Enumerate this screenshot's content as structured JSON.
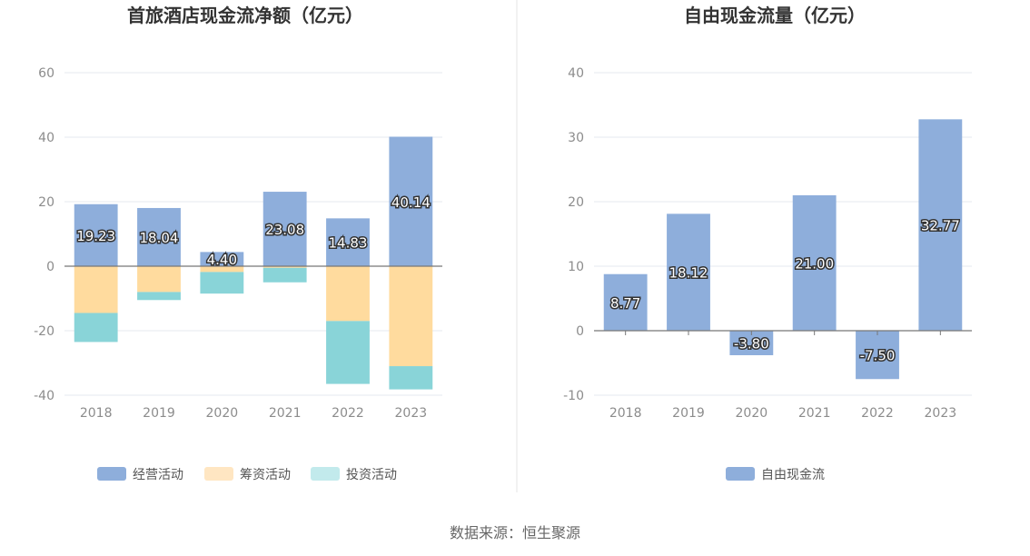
{
  "chart_data": [
    {
      "type": "bar",
      "stacked": true,
      "title": "首旅酒店现金流净额（亿元）",
      "categories": [
        "2018",
        "2019",
        "2020",
        "2021",
        "2022",
        "2023"
      ],
      "ylim": [
        -40,
        60
      ],
      "yticks": [
        60,
        40,
        20,
        0,
        -20,
        -40
      ],
      "grid": true,
      "legend_position": "bottom",
      "series": [
        {
          "name": "经营活动",
          "color": "#8eaedb",
          "values": [
            19.23,
            18.04,
            4.4,
            23.08,
            14.83,
            40.14
          ]
        },
        {
          "name": "筹资活动",
          "color": "#ffdb9e",
          "values": [
            -14.5,
            -8.0,
            -1.8,
            -0.5,
            -17.0,
            -31.0
          ]
        },
        {
          "name": "投资活动",
          "color": "#89d4d8",
          "values": [
            -9.0,
            -2.5,
            -6.7,
            -4.5,
            -19.5,
            -7.2
          ]
        }
      ],
      "data_labels": [
        "19.23",
        "18.04",
        "4.40",
        "23.08",
        "14.83",
        "40.14"
      ]
    },
    {
      "type": "bar",
      "title": "自由现金流量（亿元）",
      "categories": [
        "2018",
        "2019",
        "2020",
        "2021",
        "2022",
        "2023"
      ],
      "ylim": [
        -10,
        40
      ],
      "yticks": [
        40,
        30,
        20,
        10,
        0,
        -10
      ],
      "grid": true,
      "legend_position": "bottom",
      "series": [
        {
          "name": "自由现金流",
          "color": "#8eaedb",
          "values": [
            8.77,
            18.12,
            -3.8,
            21.0,
            -7.5,
            32.77
          ]
        }
      ],
      "data_labels": [
        "8.77",
        "18.12",
        "-3.80",
        "21.00",
        "-7.50",
        "32.77"
      ]
    }
  ],
  "legend_colors": {
    "经营活动": "#8eaedb",
    "筹资活动": "#ffe6c2",
    "投资活动": "#c2eaec",
    "自由现金流": "#8eaedb"
  },
  "source": "数据来源：恒生聚源"
}
